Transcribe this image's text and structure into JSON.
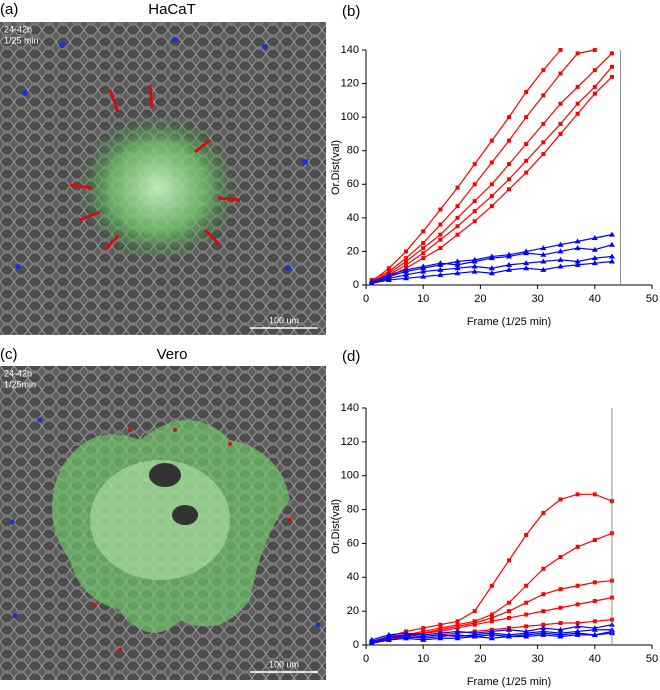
{
  "panels": [
    {
      "label": "(a)",
      "title": "HaCaT",
      "overlay": [
        "24-42h",
        "1/25 min"
      ],
      "scale_bar": "100 um"
    },
    {
      "label": "(c)",
      "title": "Vero",
      "overlay": [
        "24-42h",
        "1/25min"
      ],
      "scale_bar": "100 um"
    }
  ],
  "chart_data": [
    {
      "type": "line",
      "label": "(b)",
      "x_label": "Frame (1/25 min)",
      "y_label": "Or.Dist(val)",
      "x": [
        1,
        4,
        7,
        10,
        13,
        16,
        19,
        22,
        25,
        28,
        31,
        34,
        37,
        40,
        43
      ],
      "xlim": [
        0,
        50
      ],
      "xticks": [
        0,
        10,
        20,
        30,
        40,
        50
      ],
      "ylim": [
        0,
        140
      ],
      "yticks": [
        0,
        20,
        40,
        60,
        80,
        100,
        120,
        140
      ],
      "vline": 44.5,
      "series": [
        {
          "color": "#ff0000",
          "marker": "square",
          "values": [
            2,
            10,
            20,
            32,
            45,
            58,
            72,
            86,
            100,
            115,
            128,
            140,
            null,
            null,
            null
          ]
        },
        {
          "color": "#ff0000",
          "marker": "square",
          "values": [
            3,
            8,
            16,
            25,
            36,
            47,
            60,
            73,
            86,
            100,
            113,
            126,
            138,
            140,
            null
          ]
        },
        {
          "color": "#ff0000",
          "marker": "square",
          "values": [
            2,
            7,
            14,
            22,
            30,
            40,
            50,
            60,
            72,
            84,
            96,
            108,
            118,
            128,
            138
          ]
        },
        {
          "color": "#ff0000",
          "marker": "square",
          "values": [
            1,
            6,
            12,
            19,
            27,
            35,
            44,
            53,
            63,
            74,
            85,
            96,
            108,
            118,
            130
          ]
        },
        {
          "color": "#ff0000",
          "marker": "square",
          "values": [
            2,
            5,
            10,
            16,
            22,
            30,
            38,
            47,
            57,
            67,
            78,
            90,
            102,
            114,
            124
          ]
        },
        {
          "color": "#0000ff",
          "marker": "triangle",
          "values": [
            1,
            5,
            8,
            10,
            12,
            14,
            15,
            17,
            18,
            20,
            22,
            24,
            26,
            28,
            30
          ]
        },
        {
          "color": "#0000ff",
          "marker": "triangle",
          "values": [
            2,
            6,
            9,
            11,
            13,
            12,
            14,
            16,
            17,
            19,
            18,
            20,
            22,
            21,
            24
          ]
        },
        {
          "color": "#0000ff",
          "marker": "triangle",
          "values": [
            1,
            4,
            6,
            8,
            9,
            10,
            11,
            10,
            12,
            13,
            14,
            15,
            14,
            16,
            17
          ]
        },
        {
          "color": "#0000ff",
          "marker": "triangle",
          "values": [
            1,
            3,
            4,
            5,
            6,
            7,
            8,
            7,
            9,
            10,
            9,
            11,
            12,
            13,
            14
          ]
        }
      ]
    },
    {
      "type": "line",
      "label": "(d)",
      "x_label": "Frame (1/25 min)",
      "y_label": "Or.Dist(val)",
      "x": [
        1,
        4,
        7,
        10,
        13,
        16,
        19,
        22,
        25,
        28,
        31,
        34,
        37,
        40,
        43
      ],
      "xlim": [
        0,
        50
      ],
      "xticks": [
        0,
        10,
        20,
        30,
        40,
        50
      ],
      "ylim": [
        0,
        140
      ],
      "yticks": [
        0,
        20,
        40,
        60,
        80,
        100,
        120,
        140
      ],
      "vline": 43,
      "series": [
        {
          "color": "#ff0000",
          "marker": "square",
          "values": [
            2,
            5,
            8,
            10,
            12,
            14,
            20,
            35,
            50,
            65,
            78,
            86,
            89,
            89,
            85
          ]
        },
        {
          "color": "#ff0000",
          "marker": "square",
          "values": [
            1,
            4,
            6,
            8,
            10,
            12,
            14,
            18,
            25,
            35,
            45,
            52,
            58,
            62,
            66
          ]
        },
        {
          "color": "#ff0000",
          "marker": "square",
          "values": [
            1,
            3,
            5,
            7,
            9,
            11,
            13,
            16,
            20,
            25,
            30,
            33,
            35,
            37,
            38
          ]
        },
        {
          "color": "#ff0000",
          "marker": "square",
          "values": [
            2,
            4,
            6,
            7,
            8,
            10,
            12,
            14,
            16,
            18,
            20,
            22,
            24,
            26,
            28
          ]
        },
        {
          "color": "#ff0000",
          "marker": "square",
          "values": [
            1,
            3,
            4,
            5,
            6,
            7,
            8,
            9,
            10,
            11,
            12,
            13,
            13,
            14,
            15
          ]
        },
        {
          "color": "#0000ff",
          "marker": "triangle",
          "values": [
            3,
            6,
            7,
            6,
            7,
            8,
            7,
            8,
            9,
            8,
            10,
            9,
            11,
            10,
            12
          ]
        },
        {
          "color": "#0000ff",
          "marker": "triangle",
          "values": [
            2,
            5,
            6,
            5,
            6,
            5,
            6,
            7,
            6,
            7,
            8,
            7,
            8,
            9,
            9
          ]
        },
        {
          "color": "#0000ff",
          "marker": "triangle",
          "values": [
            1,
            4,
            5,
            4,
            5,
            6,
            5,
            6,
            5,
            6,
            7,
            6,
            7,
            6,
            8
          ]
        },
        {
          "color": "#0000ff",
          "marker": "triangle",
          "values": [
            1,
            3,
            4,
            3,
            4,
            4,
            5,
            4,
            5,
            5,
            6,
            5,
            6,
            6,
            7
          ]
        }
      ]
    }
  ]
}
